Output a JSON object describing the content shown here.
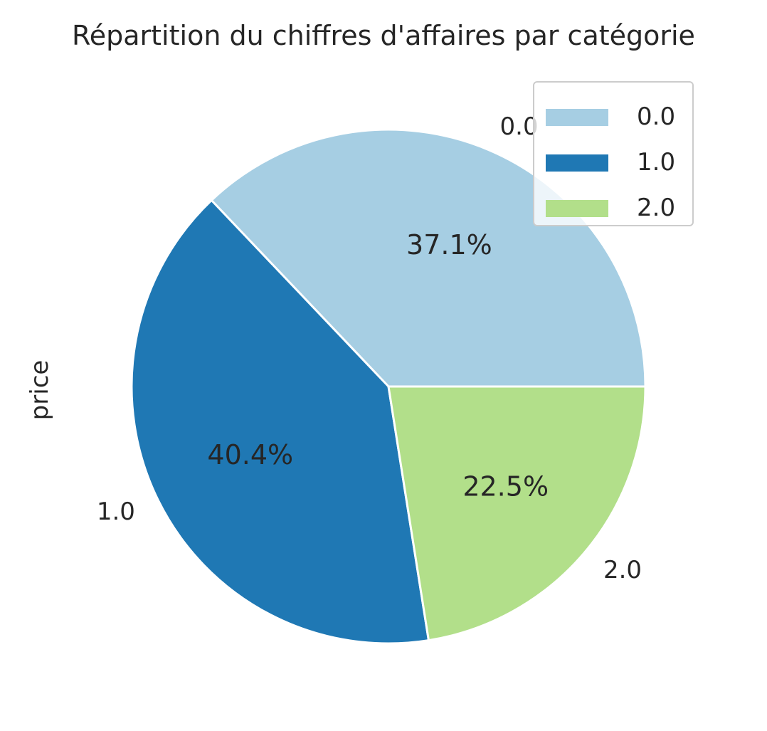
{
  "chart_data": {
    "type": "pie",
    "title": "Répartition du chiffres d'affaires par catégorie",
    "ylabel": "price",
    "categories": [
      "0.0",
      "1.0",
      "2.0"
    ],
    "values": [
      37.1,
      40.4,
      22.5
    ],
    "percent_labels": [
      "37.1%",
      "40.4%",
      "22.5%"
    ],
    "colors": [
      "#a6cee3",
      "#1f78b4",
      "#b2df8a"
    ],
    "start_angle_deg": 0,
    "direction": "counterclockwise",
    "wedge_edge_color": "#ffffff",
    "legend": {
      "position": "top-right",
      "entries": [
        "0.0",
        "1.0",
        "2.0"
      ]
    }
  }
}
